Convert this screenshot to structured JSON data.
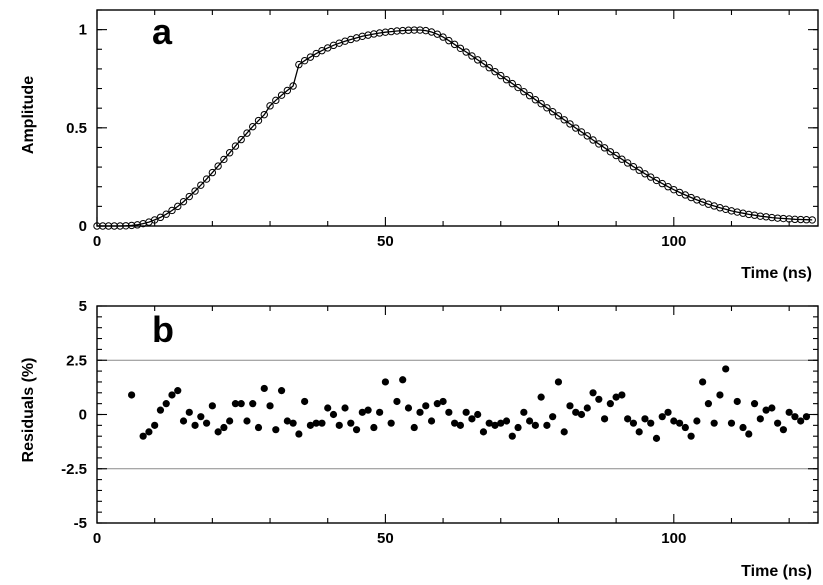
{
  "chart_data": [
    {
      "type": "scatter",
      "panel": "a",
      "title": "",
      "xlabel": "Time (ns)",
      "ylabel": "Amplitude",
      "xlim": [
        0,
        125
      ],
      "ylim": [
        0,
        1.1
      ],
      "x_ticks": [
        0,
        50,
        100
      ],
      "y_ticks": [
        0,
        0.5,
        1
      ],
      "x_tick_labels": [
        "0",
        "50",
        "100"
      ],
      "y_tick_labels": [
        "0",
        "0.5",
        "1"
      ],
      "grid": false,
      "marker": "open-circle",
      "fit_line": true,
      "series": [
        {
          "x": [
            0,
            1,
            2,
            3,
            4,
            5,
            6,
            7,
            8,
            9,
            10,
            11,
            12,
            13,
            14,
            15,
            16,
            17,
            18,
            19,
            20,
            21,
            22,
            23,
            24,
            25,
            26,
            27,
            28,
            29,
            30,
            31,
            32,
            33,
            34,
            35,
            36,
            37,
            38,
            39,
            40,
            41,
            42,
            43,
            44,
            45,
            46,
            47,
            48,
            49,
            50,
            51,
            52,
            53,
            54,
            55,
            56,
            57,
            58,
            59,
            60,
            61,
            62,
            63,
            64,
            65,
            66,
            67,
            68,
            69,
            70,
            71,
            72,
            73,
            74,
            75,
            76,
            77,
            78,
            79,
            80,
            81,
            82,
            83,
            84,
            85,
            86,
            87,
            88,
            89,
            90,
            91,
            92,
            93,
            94,
            95,
            96,
            97,
            98,
            99,
            100,
            101,
            102,
            103,
            104,
            105,
            106,
            107,
            108,
            109,
            110,
            111,
            112,
            113,
            114,
            115,
            116,
            117,
            118,
            119,
            120,
            121,
            122,
            123,
            124
          ],
          "y": [
            0,
            0,
            0,
            0,
            0,
            0.001,
            0.003,
            0.006,
            0.012,
            0.02,
            0.031,
            0.044,
            0.06,
            0.079,
            0.1,
            0.124,
            0.15,
            0.178,
            0.208,
            0.239,
            0.272,
            0.305,
            0.339,
            0.373,
            0.407,
            0.44,
            0.473,
            0.506,
            0.537,
            0.567,
            0.612,
            0.64,
            0.666,
            0.69,
            0.713,
            0.822,
            0.842,
            0.86,
            0.878,
            0.893,
            0.907,
            0.92,
            0.931,
            0.941,
            0.95,
            0.958,
            0.966,
            0.972,
            0.978,
            0.983,
            0.987,
            0.99,
            0.993,
            0.995,
            0.997,
            0.998,
            0.998,
            0.995,
            0.988,
            0.977,
            0.962,
            0.944,
            0.925,
            0.905,
            0.886,
            0.866,
            0.846,
            0.826,
            0.806,
            0.786,
            0.766,
            0.745,
            0.725,
            0.705,
            0.684,
            0.664,
            0.643,
            0.623,
            0.602,
            0.582,
            0.561,
            0.541,
            0.52,
            0.499,
            0.479,
            0.459,
            0.438,
            0.418,
            0.398,
            0.378,
            0.359,
            0.34,
            0.321,
            0.302,
            0.284,
            0.266,
            0.249,
            0.232,
            0.216,
            0.2,
            0.185,
            0.171,
            0.158,
            0.145,
            0.133,
            0.122,
            0.111,
            0.102,
            0.093,
            0.085,
            0.077,
            0.071,
            0.065,
            0.059,
            0.055,
            0.05,
            0.047,
            0.043,
            0.04,
            0.038,
            0.036,
            0.034,
            0.033,
            0.032,
            0.031
          ]
        }
      ]
    },
    {
      "type": "scatter",
      "panel": "b",
      "title": "",
      "xlabel": "Time (ns)",
      "ylabel": "Residuals (%)",
      "xlim": [
        0,
        125
      ],
      "ylim": [
        -5,
        5
      ],
      "x_ticks": [
        0,
        50,
        100
      ],
      "y_ticks": [
        -5,
        -2.5,
        0,
        2.5,
        5
      ],
      "x_tick_labels": [
        "0",
        "50",
        "100"
      ],
      "y_tick_labels": [
        "-5",
        "-2.5",
        "0",
        "2.5",
        "5"
      ],
      "reference_lines": [
        2.5,
        -2.5
      ],
      "grid": false,
      "marker": "filled-circle",
      "series": [
        {
          "x": [
            6,
            8,
            9,
            10,
            11,
            12,
            13,
            14,
            15,
            16,
            17,
            18,
            19,
            20,
            21,
            22,
            23,
            24,
            25,
            26,
            27,
            28,
            29,
            30,
            31,
            32,
            33,
            34,
            35,
            36,
            37,
            38,
            39,
            40,
            41,
            42,
            43,
            44,
            45,
            46,
            47,
            48,
            49,
            50,
            51,
            52,
            53,
            54,
            55,
            56,
            57,
            58,
            59,
            60,
            61,
            62,
            63,
            64,
            65,
            66,
            67,
            68,
            69,
            70,
            71,
            72,
            73,
            74,
            75,
            76,
            77,
            78,
            79,
            80,
            81,
            82,
            83,
            84,
            85,
            86,
            87,
            88,
            89,
            90,
            91,
            92,
            93,
            94,
            95,
            96,
            97,
            98,
            99,
            100,
            101,
            102,
            103,
            104,
            105,
            106,
            107,
            108,
            109,
            110,
            111,
            112,
            113,
            114,
            115,
            116,
            117,
            118,
            119,
            120,
            121,
            122,
            123
          ],
          "y": [
            0.9,
            -1.0,
            -0.8,
            -0.5,
            0.2,
            0.5,
            0.9,
            1.1,
            -0.3,
            0.1,
            -0.5,
            -0.1,
            -0.4,
            0.4,
            -0.8,
            -0.6,
            -0.3,
            0.5,
            0.5,
            -0.3,
            0.5,
            -0.6,
            1.2,
            0.4,
            -0.7,
            1.1,
            -0.3,
            -0.4,
            -0.9,
            0.6,
            -0.5,
            -0.4,
            -0.4,
            0.3,
            0.0,
            -0.5,
            0.3,
            -0.4,
            -0.7,
            0.1,
            0.2,
            -0.6,
            0.1,
            1.5,
            -0.4,
            0.6,
            1.6,
            0.3,
            -0.6,
            0.1,
            0.4,
            -0.3,
            0.5,
            0.6,
            0.1,
            -0.4,
            -0.5,
            0.1,
            -0.2,
            0.0,
            -0.8,
            -0.4,
            -0.5,
            -0.4,
            -0.3,
            -1.0,
            -0.6,
            0.1,
            -0.3,
            -0.5,
            0.8,
            -0.5,
            -0.1,
            1.5,
            -0.8,
            0.4,
            0.1,
            0.0,
            0.3,
            1.0,
            0.7,
            -0.2,
            0.5,
            0.8,
            0.9,
            -0.2,
            -0.4,
            -0.8,
            -0.2,
            -0.4,
            -1.1,
            -0.1,
            0.1,
            -0.3,
            -0.4,
            -0.6,
            -1.0,
            -0.3,
            1.5,
            0.5,
            -0.4,
            0.9,
            2.1,
            -0.4,
            0.6,
            -0.6,
            -0.9,
            0.5,
            -0.2,
            0.2,
            0.3,
            -0.4,
            -0.7,
            0.1,
            -0.1,
            -0.3,
            -0.1
          ]
        }
      ]
    }
  ]
}
